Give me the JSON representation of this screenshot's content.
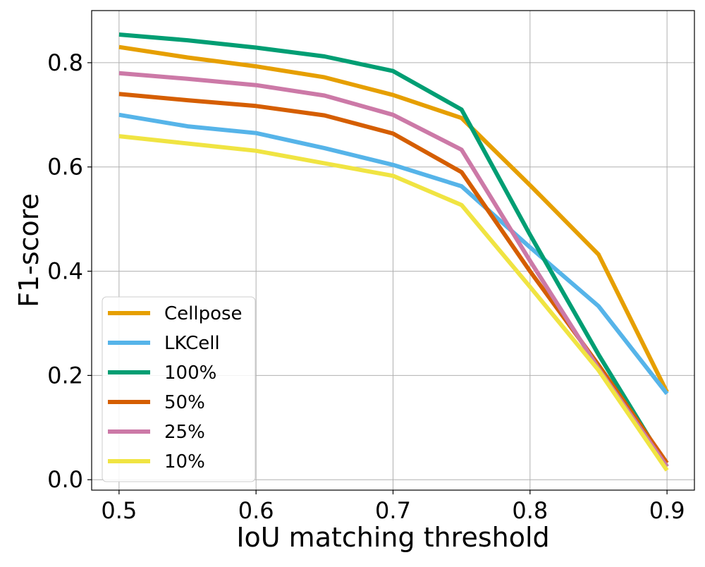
{
  "chart_data": {
    "type": "line",
    "title": "",
    "xlabel": "IoU matching threshold",
    "ylabel": "F1-score",
    "xlim": [
      0.48,
      0.92
    ],
    "ylim": [
      -0.02,
      0.9
    ],
    "grid": true,
    "legend_position": "lower-left",
    "x": [
      0.5,
      0.55,
      0.6,
      0.65,
      0.7,
      0.75,
      0.8,
      0.85,
      0.9
    ],
    "x_ticks": [
      0.5,
      0.6,
      0.7,
      0.8,
      0.9
    ],
    "x_tick_labels": [
      "0.5",
      "0.6",
      "0.7",
      "0.8",
      "0.9"
    ],
    "y_ticks": [
      0.0,
      0.2,
      0.4,
      0.6,
      0.8
    ],
    "y_tick_labels": [
      "0.0",
      "0.2",
      "0.4",
      "0.6",
      "0.8"
    ],
    "series": [
      {
        "name": "Cellpose",
        "color": "#E69F00",
        "values": [
          0.83,
          0.81,
          0.793,
          0.772,
          0.738,
          0.694,
          0.565,
          0.432,
          0.168
        ]
      },
      {
        "name": "LKCell",
        "color": "#56B4E9",
        "values": [
          0.7,
          0.678,
          0.665,
          0.636,
          0.604,
          0.563,
          0.446,
          0.333,
          0.165
        ]
      },
      {
        "name": "100%",
        "color": "#009E73",
        "values": [
          0.854,
          0.843,
          0.829,
          0.812,
          0.784,
          0.71,
          0.47,
          0.24,
          0.025
        ]
      },
      {
        "name": "50%",
        "color": "#D55E00",
        "values": [
          0.74,
          0.728,
          0.717,
          0.699,
          0.664,
          0.59,
          0.4,
          0.22,
          0.032
        ]
      },
      {
        "name": "25%",
        "color": "#CC79A7",
        "values": [
          0.78,
          0.769,
          0.757,
          0.737,
          0.7,
          0.633,
          0.42,
          0.213,
          0.025
        ]
      },
      {
        "name": "10%",
        "color": "#F0E442",
        "values": [
          0.659,
          0.645,
          0.631,
          0.607,
          0.583,
          0.527,
          0.37,
          0.21,
          0.018
        ]
      }
    ]
  }
}
